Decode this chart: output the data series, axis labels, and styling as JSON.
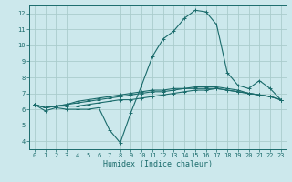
{
  "title": "",
  "xlabel": "Humidex (Indice chaleur)",
  "background_color": "#cce8ec",
  "grid_color": "#aacccc",
  "line_color": "#1a6b6b",
  "x_values": [
    0,
    1,
    2,
    3,
    4,
    5,
    6,
    7,
    8,
    9,
    10,
    11,
    12,
    13,
    14,
    15,
    16,
    17,
    18,
    19,
    20,
    21,
    22,
    23
  ],
  "series": [
    [
      6.3,
      5.9,
      6.1,
      6.0,
      6.0,
      6.0,
      6.1,
      4.7,
      3.9,
      5.8,
      7.5,
      9.3,
      10.4,
      10.9,
      11.7,
      12.2,
      12.1,
      11.3,
      8.3,
      7.5,
      7.3,
      7.8,
      7.3,
      6.6
    ],
    [
      6.3,
      6.1,
      6.2,
      6.2,
      6.2,
      6.3,
      6.4,
      6.5,
      6.6,
      6.6,
      6.7,
      6.8,
      6.9,
      7.0,
      7.1,
      7.2,
      7.2,
      7.3,
      7.2,
      7.1,
      7.0,
      6.9,
      6.8,
      6.6
    ],
    [
      6.3,
      6.1,
      6.2,
      6.3,
      6.4,
      6.5,
      6.6,
      6.7,
      6.8,
      6.9,
      7.0,
      7.1,
      7.1,
      7.2,
      7.3,
      7.3,
      7.3,
      7.3,
      7.2,
      7.1,
      7.0,
      6.9,
      6.8,
      6.6
    ],
    [
      6.3,
      6.1,
      6.2,
      6.3,
      6.5,
      6.6,
      6.7,
      6.8,
      6.9,
      7.0,
      7.1,
      7.2,
      7.2,
      7.3,
      7.3,
      7.4,
      7.4,
      7.4,
      7.3,
      7.2,
      7.0,
      6.9,
      6.8,
      6.6
    ]
  ],
  "ylim": [
    3.5,
    12.5
  ],
  "xlim": [
    -0.5,
    23.5
  ],
  "yticks": [
    4,
    5,
    6,
    7,
    8,
    9,
    10,
    11,
    12
  ],
  "xticks": [
    0,
    1,
    2,
    3,
    4,
    5,
    6,
    7,
    8,
    9,
    10,
    11,
    12,
    13,
    14,
    15,
    16,
    17,
    18,
    19,
    20,
    21,
    22,
    23
  ],
  "marker": "+",
  "markersize": 3,
  "linewidth": 0.8,
  "tick_labelsize": 5.0,
  "xlabel_fontsize": 6.0
}
